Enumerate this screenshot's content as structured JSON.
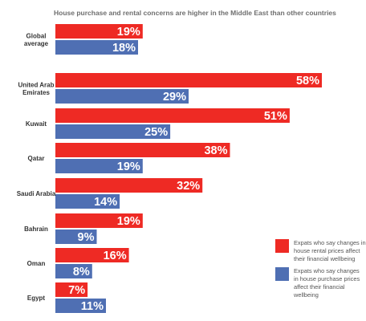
{
  "colors": {
    "rental": "#ee2a24",
    "purchase": "#4f6fb3"
  },
  "chart_data": {
    "type": "bar",
    "orientation": "horizontal",
    "title": "House purchase and rental concerns are higher in the Middle East than other countries",
    "categories": [
      [
        "Global",
        "average"
      ],
      [
        "United Arab",
        "Emirates"
      ],
      [
        "Kuwait"
      ],
      [
        "Qatar"
      ],
      [
        "Saudi Arabia"
      ],
      [
        "Bahrain"
      ],
      [
        "Oman"
      ],
      [
        "Egypt"
      ]
    ],
    "series": [
      {
        "name": "Expats who say changes in house rental prices affect their financial wellbeing",
        "legend_lines": [
          "Expats who say changes in",
          "house rental prices affect",
          "their financial wellbeing"
        ],
        "color": "#ee2a24",
        "values": [
          19,
          58,
          51,
          38,
          32,
          19,
          16,
          7
        ]
      },
      {
        "name": "Expats who say changes in house purchase prices affect their financial wellbeing",
        "legend_lines": [
          "Expats who say changes",
          "in house purchase prices",
          "affect their financial",
          "wellbeing"
        ],
        "color": "#4f6fb3",
        "values": [
          18,
          29,
          25,
          19,
          14,
          9,
          8,
          11
        ]
      }
    ],
    "value_suffix": "%",
    "xlim": [
      0,
      58
    ],
    "grid": false,
    "legend_position": "bottom-right"
  }
}
